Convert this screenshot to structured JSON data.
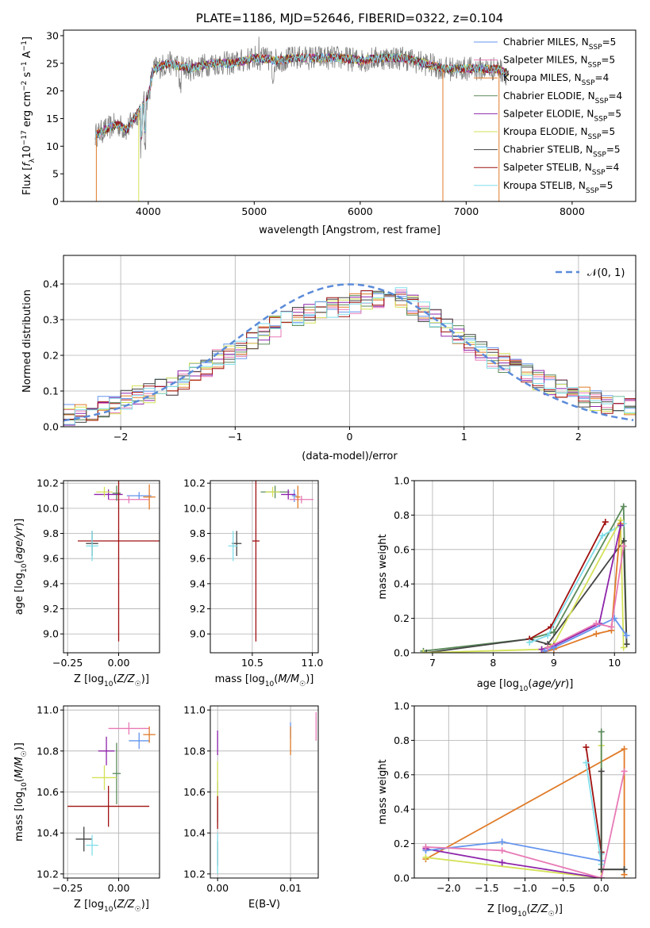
{
  "chart_data": [
    {
      "type": "line",
      "title": "PLATE=1186, MJD=52646, FIBERID=0322, z=0.104",
      "xlabel": "wavelength [Angstrom, rest frame]",
      "ylabel": "Flux [f_λ10^-17 erg cm^-2 s^-1 A^-1]",
      "xlim": [
        3200,
        8600
      ],
      "ylim": [
        0,
        31
      ],
      "xticks": [
        "4000",
        "5000",
        "6000",
        "7000",
        "8000"
      ],
      "yticks": [
        "0",
        "5",
        "10",
        "15",
        "20",
        "25",
        "30"
      ],
      "legend_position": "top-right",
      "series": [
        {
          "name": "Chabrier MILES, N_SSP=5",
          "color": "#6495ed"
        },
        {
          "name": "Salpeter MILES, N_SSP=5",
          "color": "#e87ab5"
        },
        {
          "name": "Kroupa MILES, N_SSP=4",
          "color": "#e07b28"
        },
        {
          "name": "Chabrier ELODIE, N_SSP=4",
          "color": "#5a8a5a"
        },
        {
          "name": "Salpeter ELODIE, N_SSP=5",
          "color": "#8e24aa"
        },
        {
          "name": "Kroupa ELODIE, N_SSP=5",
          "color": "#d4e157"
        },
        {
          "name": "Chabrier STELIB, N_SSP=5",
          "color": "#444444"
        },
        {
          "name": "Salpeter STELIB, N_SSP=4",
          "color": "#a01010"
        },
        {
          "name": "Kroupa STELIB, N_SSP=5",
          "color": "#80deea"
        }
      ],
      "data_color": "#808080",
      "spectrum_key_points": [
        [
          3500,
          12
        ],
        [
          3600,
          13
        ],
        [
          3700,
          14
        ],
        [
          3800,
          13
        ],
        [
          3900,
          16
        ],
        [
          4000,
          19
        ],
        [
          4050,
          24
        ],
        [
          4200,
          25
        ],
        [
          4400,
          24
        ],
        [
          4600,
          25
        ],
        [
          4800,
          25
        ],
        [
          5000,
          26
        ],
        [
          5200,
          25.5
        ],
        [
          5400,
          26
        ],
        [
          5600,
          26
        ],
        [
          5800,
          26
        ],
        [
          6000,
          25.5
        ],
        [
          6200,
          26
        ],
        [
          6400,
          26
        ],
        [
          6600,
          25
        ],
        [
          6800,
          24
        ],
        [
          7000,
          24
        ],
        [
          7200,
          24
        ],
        [
          7300,
          24
        ],
        [
          7400,
          23
        ]
      ]
    },
    {
      "type": "line",
      "xlabel": "(data-model)/error",
      "ylabel": "Normed distribution",
      "xlim": [
        -2.5,
        2.5
      ],
      "ylim": [
        0,
        0.48
      ],
      "xticks": [
        "−2",
        "−1",
        "0",
        "1",
        "2"
      ],
      "yticks": [
        "0.0",
        "0.1",
        "0.2",
        "0.3",
        "0.4"
      ],
      "grid": true,
      "legend_position": "top-right",
      "gaussian_label": "𝒩(0, 1)",
      "gaussian_color": "#5b8bd9",
      "hist_bin_width": 0.1,
      "hist_profile": [
        [
          -2.5,
          0.03
        ],
        [
          -2.2,
          0.05
        ],
        [
          -2.0,
          0.07
        ],
        [
          -1.8,
          0.09
        ],
        [
          -1.6,
          0.11
        ],
        [
          -1.4,
          0.14
        ],
        [
          -1.2,
          0.18
        ],
        [
          -1.0,
          0.21
        ],
        [
          -0.8,
          0.25
        ],
        [
          -0.6,
          0.29
        ],
        [
          -0.4,
          0.31
        ],
        [
          -0.2,
          0.33
        ],
        [
          0.0,
          0.34
        ],
        [
          0.2,
          0.36
        ],
        [
          0.4,
          0.37
        ],
        [
          0.6,
          0.33
        ],
        [
          0.8,
          0.29
        ],
        [
          1.0,
          0.25
        ],
        [
          1.2,
          0.2
        ],
        [
          1.4,
          0.17
        ],
        [
          1.6,
          0.14
        ],
        [
          1.8,
          0.11
        ],
        [
          2.0,
          0.09
        ],
        [
          2.2,
          0.07
        ],
        [
          2.5,
          0.05
        ]
      ]
    },
    {
      "type": "scatter",
      "xlabel": "Z [log10(Z/Z☉)]",
      "ylabel": "age [log10(age/yr)]",
      "xlim": [
        -0.27,
        0.2
      ],
      "ylim": [
        8.85,
        10.22
      ],
      "xticks": [
        "−0.25",
        "0.00"
      ],
      "yticks": [
        "9.0",
        "9.2",
        "9.4",
        "9.6",
        "9.8",
        "10.0",
        "10.2"
      ],
      "points": [
        {
          "color": "#6495ed",
          "x": 0.1,
          "y": 10.1,
          "xerr": 0.06,
          "yerr": 0.03
        },
        {
          "color": "#e87ab5",
          "x": 0.05,
          "y": 10.07,
          "xerr": 0.1,
          "yerr": 0.03
        },
        {
          "color": "#e07b28",
          "x": 0.15,
          "y": 10.09,
          "xerr": 0.03,
          "yerr": 0.1
        },
        {
          "color": "#5a8a5a",
          "x": -0.01,
          "y": 10.12,
          "xerr": 0.02,
          "yerr": 0.06
        },
        {
          "color": "#8e24aa",
          "x": -0.05,
          "y": 10.11,
          "xerr": 0.07,
          "yerr": 0.04
        },
        {
          "color": "#d4e157",
          "x": -0.07,
          "y": 10.13,
          "xerr": 0.04,
          "yerr": 0.04
        },
        {
          "color": "#444444",
          "x": -0.13,
          "y": 9.72,
          "xerr": 0.03,
          "yerr": 0.1
        },
        {
          "color": "#a01010",
          "x": 0.0,
          "y": 9.74,
          "xerr": 0.2,
          "yerr": 0.8
        },
        {
          "color": "#80deea",
          "x": -0.13,
          "y": 9.7,
          "xerr": 0.03,
          "yerr": 0.12
        }
      ]
    },
    {
      "type": "scatter",
      "xlabel": "mass [log10(M/M☉)]",
      "xlim": [
        10.15,
        11.05
      ],
      "ylim": [
        8.85,
        10.22
      ],
      "xticks": [
        "10.5",
        "11.0"
      ],
      "yticks": [
        "9.0",
        "9.2",
        "9.4",
        "9.6",
        "9.8",
        "10.0",
        "10.2"
      ],
      "points": [
        {
          "color": "#6495ed",
          "x": 10.85,
          "y": 10.1,
          "xerr": 0.02,
          "yerr": 0.05
        },
        {
          "color": "#e87ab5",
          "x": 10.91,
          "y": 10.07,
          "xerr": 0.1,
          "yerr": 0.03
        },
        {
          "color": "#e07b28",
          "x": 10.88,
          "y": 10.09,
          "xerr": 0.02,
          "yerr": 0.09
        },
        {
          "color": "#5a8a5a",
          "x": 10.69,
          "y": 10.13,
          "xerr": 0.12,
          "yerr": 0.05
        },
        {
          "color": "#8e24aa",
          "x": 10.8,
          "y": 10.11,
          "xerr": 0.06,
          "yerr": 0.04
        },
        {
          "color": "#d4e157",
          "x": 10.67,
          "y": 10.13,
          "xerr": 0.06,
          "yerr": 0.04
        },
        {
          "color": "#444444",
          "x": 10.37,
          "y": 9.72,
          "xerr": 0.04,
          "yerr": 0.1
        },
        {
          "color": "#a01010",
          "x": 10.53,
          "y": 9.74,
          "xerr": 0.03,
          "yerr": 0.8
        },
        {
          "color": "#80deea",
          "x": 10.34,
          "y": 9.7,
          "xerr": 0.04,
          "yerr": 0.12
        }
      ]
    },
    {
      "type": "line",
      "xlabel": "age [log10(age/yr)]",
      "ylabel": "mass weight",
      "xlim": [
        6.7,
        10.35
      ],
      "ylim": [
        0,
        1.0
      ],
      "xticks": [
        "7",
        "8",
        "9",
        "10"
      ],
      "yticks": [
        "0.0",
        "0.2",
        "0.4",
        "0.6",
        "0.8",
        "1.0"
      ],
      "grid": true,
      "series": [
        {
          "color": "#5a8a5a",
          "x": [
            6.85,
            8.6,
            9.0,
            10.15,
            10.2
          ],
          "y": [
            0.01,
            0.08,
            0.12,
            0.85,
            0.05
          ]
        },
        {
          "color": "#444444",
          "x": [
            6.9,
            8.6,
            8.9,
            10.15,
            10.2
          ],
          "y": [
            0.0,
            0.08,
            0.05,
            0.65,
            0.05
          ]
        },
        {
          "color": "#a01010",
          "x": [
            8.6,
            8.95,
            9.85
          ],
          "y": [
            0.08,
            0.15,
            0.76
          ]
        },
        {
          "color": "#80deea",
          "x": [
            8.6,
            8.9,
            9.8,
            10.15
          ],
          "y": [
            0.06,
            0.1,
            0.68,
            0.75
          ]
        },
        {
          "color": "#d4e157",
          "x": [
            6.85,
            8.8,
            9.0,
            10.1,
            10.15
          ],
          "y": [
            0.0,
            0.02,
            0.05,
            0.77,
            0.03
          ]
        },
        {
          "color": "#e07b28",
          "x": [
            8.8,
            9.0,
            9.7,
            9.95,
            10.1
          ],
          "y": [
            0.0,
            0.02,
            0.11,
            0.13,
            0.75
          ]
        },
        {
          "color": "#8e24aa",
          "x": [
            8.8,
            9.0,
            9.75,
            10.1
          ],
          "y": [
            0.02,
            0.04,
            0.17,
            0.74
          ]
        },
        {
          "color": "#6495ed",
          "x": [
            8.85,
            9.0,
            10.0,
            10.2
          ],
          "y": [
            0.01,
            0.03,
            0.2,
            0.1
          ]
        },
        {
          "color": "#e87ab5",
          "x": [
            8.9,
            9.7,
            9.95,
            10.15
          ],
          "y": [
            0.03,
            0.17,
            0.15,
            0.62
          ]
        }
      ]
    },
    {
      "type": "scatter",
      "xlabel": "Z [log10(Z/Z☉)]",
      "ylabel": "mass [log10(M/M☉)]",
      "xlim": [
        -0.27,
        0.2
      ],
      "ylim": [
        10.18,
        11.02
      ],
      "xticks": [
        "−0.25",
        "0.00"
      ],
      "yticks": [
        "10.2",
        "10.4",
        "10.6",
        "10.8",
        "11.0"
      ],
      "points": [
        {
          "color": "#6495ed",
          "x": 0.1,
          "y": 10.85,
          "xerr": 0.05,
          "yerr": 0.04
        },
        {
          "color": "#e87ab5",
          "x": 0.05,
          "y": 10.91,
          "xerr": 0.1,
          "yerr": 0.03
        },
        {
          "color": "#e07b28",
          "x": 0.15,
          "y": 10.88,
          "xerr": 0.03,
          "yerr": 0.04
        },
        {
          "color": "#5a8a5a",
          "x": -0.01,
          "y": 10.69,
          "xerr": 0.02,
          "yerr": 0.15
        },
        {
          "color": "#8e24aa",
          "x": -0.06,
          "y": 10.8,
          "xerr": 0.04,
          "yerr": 0.07
        },
        {
          "color": "#d4e157",
          "x": -0.07,
          "y": 10.67,
          "xerr": 0.06,
          "yerr": 0.06
        },
        {
          "color": "#444444",
          "x": -0.17,
          "y": 10.37,
          "xerr": 0.04,
          "yerr": 0.06
        },
        {
          "color": "#a01010",
          "x": -0.05,
          "y": 10.53,
          "xerr": 0.2,
          "yerr": 0.1
        },
        {
          "color": "#80deea",
          "x": -0.13,
          "y": 10.34,
          "xerr": 0.03,
          "yerr": 0.05
        }
      ]
    },
    {
      "type": "scatter",
      "xlabel": "E(B-V)",
      "xlim": [
        -0.001,
        0.0138
      ],
      "ylim": [
        10.18,
        11.02
      ],
      "xticks": [
        "0.00",
        "0.01"
      ],
      "yticks": [
        "10.2",
        "10.4",
        "10.6",
        "10.8",
        "11.0"
      ],
      "points": [
        {
          "color": "#6495ed",
          "x": 0.01,
          "y": 10.9,
          "xerr": 0,
          "yerr": 0.04
        },
        {
          "color": "#e87ab5",
          "x": 0.0135,
          "y": 10.92,
          "xerr": 0,
          "yerr": 0.07
        },
        {
          "color": "#e07b28",
          "x": 0.01,
          "y": 10.85,
          "xerr": 0,
          "yerr": 0.07
        },
        {
          "color": "#5a8a5a",
          "x": 0.0,
          "y": 10.55,
          "xerr": 0,
          "yerr": 0.1
        },
        {
          "color": "#8e24aa",
          "x": 0.0,
          "y": 10.84,
          "xerr": 0,
          "yerr": 0.06
        },
        {
          "color": "#d4e157",
          "x": 0.0,
          "y": 10.65,
          "xerr": 0,
          "yerr": 0.1
        },
        {
          "color": "#444444",
          "x": 0.0,
          "y": 10.3,
          "xerr": 0,
          "yerr": 0.06
        },
        {
          "color": "#a01010",
          "x": 0.0,
          "y": 10.5,
          "xerr": 0,
          "yerr": 0.08
        },
        {
          "color": "#80deea",
          "x": 0.0,
          "y": 10.3,
          "xerr": 0,
          "yerr": 0.1
        }
      ]
    },
    {
      "type": "line",
      "xlabel": "Z [log10(Z/Z☉)]",
      "ylabel": "mass weight",
      "xlim": [
        -2.45,
        0.45
      ],
      "ylim": [
        0,
        1.0
      ],
      "xticks": [
        "−2.0",
        "−1.5",
        "−1.0",
        "−0.5",
        "0.0"
      ],
      "yticks": [
        "0.0",
        "0.2",
        "0.4",
        "0.6",
        "0.8",
        "1.0"
      ],
      "grid": true,
      "series": [
        {
          "color": "#e07b28",
          "x": [
            -2.3,
            0.3,
            0.3
          ],
          "y": [
            0.11,
            0.75,
            0.02
          ]
        },
        {
          "color": "#d4e157",
          "x": [
            -2.3,
            0.0,
            0.0
          ],
          "y": [
            0.12,
            0.0,
            0.77
          ]
        },
        {
          "color": "#8e24aa",
          "x": [
            -2.3,
            -1.3,
            0.0
          ],
          "y": [
            0.17,
            0.09,
            0.0
          ]
        },
        {
          "color": "#6495ed",
          "x": [
            -2.3,
            -1.3,
            0.0
          ],
          "y": [
            0.16,
            0.21,
            0.1
          ]
        },
        {
          "color": "#e87ab5",
          "x": [
            -2.3,
            -1.3,
            0.0,
            0.3
          ],
          "y": [
            0.18,
            0.16,
            0.0,
            0.62
          ]
        },
        {
          "color": "#a01010",
          "x": [
            -0.2,
            0.0
          ],
          "y": [
            0.76,
            0.15
          ]
        },
        {
          "color": "#80deea",
          "x": [
            -0.2,
            0.0,
            0.0
          ],
          "y": [
            0.67,
            0.08,
            0.14
          ]
        },
        {
          "color": "#5a8a5a",
          "x": [
            0.0,
            0.0,
            0.3
          ],
          "y": [
            0.85,
            0.05,
            0.05
          ]
        },
        {
          "color": "#444444",
          "x": [
            0.0,
            0.0,
            0.3
          ],
          "y": [
            0.62,
            0.05,
            0.05
          ]
        }
      ]
    }
  ]
}
